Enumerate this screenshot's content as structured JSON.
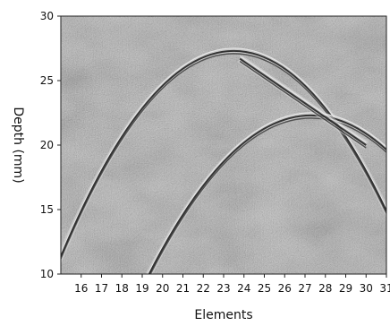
{
  "chart_data": {
    "type": "heatmap",
    "title": "",
    "xlabel": "Elements",
    "ylabel": "Depth (mm)",
    "xlim": [
      15,
      31
    ],
    "ylim": [
      10,
      30
    ],
    "x_ticks": [
      16,
      17,
      18,
      19,
      20,
      21,
      22,
      23,
      24,
      25,
      26,
      27,
      28,
      29,
      30,
      31
    ],
    "y_ticks": [
      10,
      15,
      20,
      25,
      30
    ],
    "colormap": "grayscale",
    "grid": false,
    "background_color": "#8c8c8c",
    "features": [
      {
        "kind": "arc",
        "center_element": 23.5,
        "center_depth": 27.3,
        "width_elements": 20,
        "depth_drop": 22
      },
      {
        "kind": "arc",
        "center_element": 27.3,
        "center_depth": 22.3,
        "width_elements": 17,
        "depth_drop": 14
      },
      {
        "kind": "line",
        "points": [
          [
            23.8,
            26.7
          ],
          [
            30,
            20
          ]
        ]
      }
    ]
  }
}
